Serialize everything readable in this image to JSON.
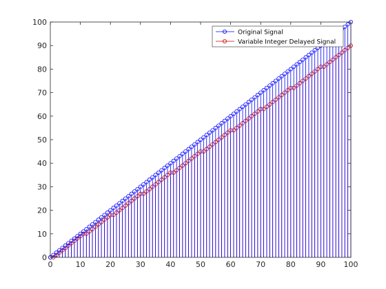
{
  "chart_data": {
    "type": "stem",
    "title": "",
    "xlabel": "",
    "ylabel": "",
    "xlim": [
      0,
      100
    ],
    "ylim": [
      0,
      100
    ],
    "xticks": [
      0,
      10,
      20,
      30,
      40,
      50,
      60,
      70,
      80,
      90,
      100
    ],
    "yticks": [
      0,
      10,
      20,
      30,
      40,
      50,
      60,
      70,
      80,
      90,
      100
    ],
    "grid": false,
    "legend_position": "top-right",
    "series": [
      {
        "name": "Original Signal",
        "color": "#0000ff",
        "marker": "circle",
        "x": [
          0,
          1,
          2,
          3,
          4,
          5,
          6,
          7,
          8,
          9,
          10,
          11,
          12,
          13,
          14,
          15,
          16,
          17,
          18,
          19,
          20,
          21,
          22,
          23,
          24,
          25,
          26,
          27,
          28,
          29,
          30,
          31,
          32,
          33,
          34,
          35,
          36,
          37,
          38,
          39,
          40,
          41,
          42,
          43,
          44,
          45,
          46,
          47,
          48,
          49,
          50,
          51,
          52,
          53,
          54,
          55,
          56,
          57,
          58,
          59,
          60,
          61,
          62,
          63,
          64,
          65,
          66,
          67,
          68,
          69,
          70,
          71,
          72,
          73,
          74,
          75,
          76,
          77,
          78,
          79,
          80,
          81,
          82,
          83,
          84,
          85,
          86,
          87,
          88,
          89,
          90,
          91,
          92,
          93,
          94,
          95,
          96,
          97,
          98,
          99,
          100
        ],
        "y": [
          0,
          1,
          2,
          3,
          4,
          5,
          6,
          7,
          8,
          9,
          10,
          11,
          12,
          13,
          14,
          15,
          16,
          17,
          18,
          19,
          20,
          21,
          22,
          23,
          24,
          25,
          26,
          27,
          28,
          29,
          30,
          31,
          32,
          33,
          34,
          35,
          36,
          37,
          38,
          39,
          40,
          41,
          42,
          43,
          44,
          45,
          46,
          47,
          48,
          49,
          50,
          51,
          52,
          53,
          54,
          55,
          56,
          57,
          58,
          59,
          60,
          61,
          62,
          63,
          64,
          65,
          66,
          67,
          68,
          69,
          70,
          71,
          72,
          73,
          74,
          75,
          76,
          77,
          78,
          79,
          80,
          81,
          82,
          83,
          84,
          85,
          86,
          87,
          88,
          89,
          90,
          91,
          92,
          93,
          94,
          95,
          96,
          97,
          98,
          99,
          100
        ]
      },
      {
        "name": "Variable Integer Delayed Signal",
        "color": "#cc0000",
        "marker": "circle",
        "x": [
          0,
          1,
          2,
          3,
          4,
          5,
          6,
          7,
          8,
          9,
          10,
          11,
          12,
          13,
          14,
          15,
          16,
          17,
          18,
          19,
          20,
          21,
          22,
          23,
          24,
          25,
          26,
          27,
          28,
          29,
          30,
          31,
          32,
          33,
          34,
          35,
          36,
          37,
          38,
          39,
          40,
          41,
          42,
          43,
          44,
          45,
          46,
          47,
          48,
          49,
          50,
          51,
          52,
          53,
          54,
          55,
          56,
          57,
          58,
          59,
          60,
          61,
          62,
          63,
          64,
          65,
          66,
          67,
          68,
          69,
          70,
          71,
          72,
          73,
          74,
          75,
          76,
          77,
          78,
          79,
          80,
          81,
          82,
          83,
          84,
          85,
          86,
          87,
          88,
          89,
          90,
          91,
          92,
          93,
          94,
          95,
          96,
          97,
          98,
          99,
          100
        ],
        "y": [
          0,
          0,
          1,
          2,
          3,
          4,
          5,
          6,
          7,
          8,
          9,
          10,
          10,
          11,
          12,
          13,
          14,
          15,
          16,
          17,
          18,
          18,
          19,
          20,
          21,
          22,
          23,
          24,
          25,
          26,
          27,
          27,
          28,
          29,
          30,
          31,
          32,
          33,
          34,
          35,
          36,
          36,
          37,
          38,
          39,
          40,
          41,
          42,
          43,
          44,
          45,
          45,
          46,
          47,
          48,
          49,
          50,
          51,
          52,
          53,
          54,
          54,
          55,
          56,
          57,
          58,
          59,
          60,
          61,
          62,
          63,
          63,
          64,
          65,
          66,
          67,
          68,
          69,
          70,
          71,
          72,
          72,
          73,
          74,
          75,
          76,
          77,
          78,
          79,
          80,
          81,
          81,
          82,
          83,
          84,
          85,
          86,
          87,
          88,
          89,
          90
        ]
      }
    ]
  }
}
